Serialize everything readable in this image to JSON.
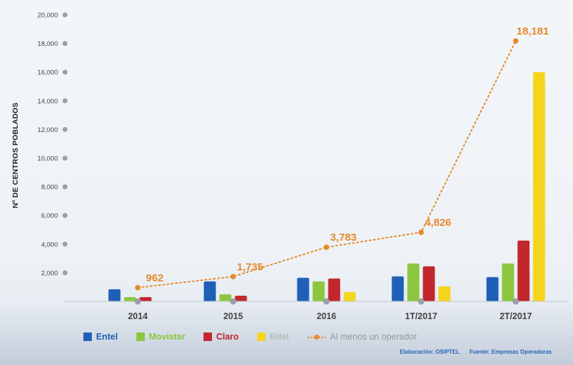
{
  "chart_data": {
    "type": "bar",
    "ylabel": "Nº DE CENTROS POBLADOS",
    "ylim": [
      0,
      20000
    ],
    "yticks": [
      2000,
      4000,
      6000,
      8000,
      10000,
      12000,
      14000,
      16000,
      18000,
      20000
    ],
    "ytick_labels": [
      "2,000",
      "4,000",
      "6,000",
      "8,000",
      "10,000",
      "12,000",
      "14,000",
      "16,000",
      "18,000",
      "20,000"
    ],
    "categories": [
      "2014",
      "2015",
      "2016",
      "1T/2017",
      "2T/2017"
    ],
    "series": [
      {
        "name": "Entel",
        "color": "#1f5fb8",
        "values": [
          850,
          1400,
          1650,
          1750,
          1700
        ]
      },
      {
        "name": "Movistar",
        "color": "#8cc63f",
        "values": [
          300,
          500,
          1400,
          2650,
          2650
        ]
      },
      {
        "name": "Claro",
        "color": "#c1272d",
        "values": [
          300,
          400,
          1600,
          2450,
          4250
        ]
      },
      {
        "name": "Bitel",
        "color": "#f4d51c",
        "values": [
          0,
          0,
          650,
          1050,
          16000
        ]
      }
    ],
    "line": {
      "name": "Al menos un operador",
      "color": "#e58a2c",
      "values": [
        962,
        1735,
        3783,
        4826,
        18181
      ],
      "labels": [
        "962",
        "1,735",
        "3,783",
        "4,826",
        "18,181"
      ]
    },
    "legend_position": "bottom",
    "grid": false
  },
  "footer": {
    "elaboracion": "Elaboración: OSIPTEL",
    "fuente": "Fuente: Empresas Operadoras"
  }
}
